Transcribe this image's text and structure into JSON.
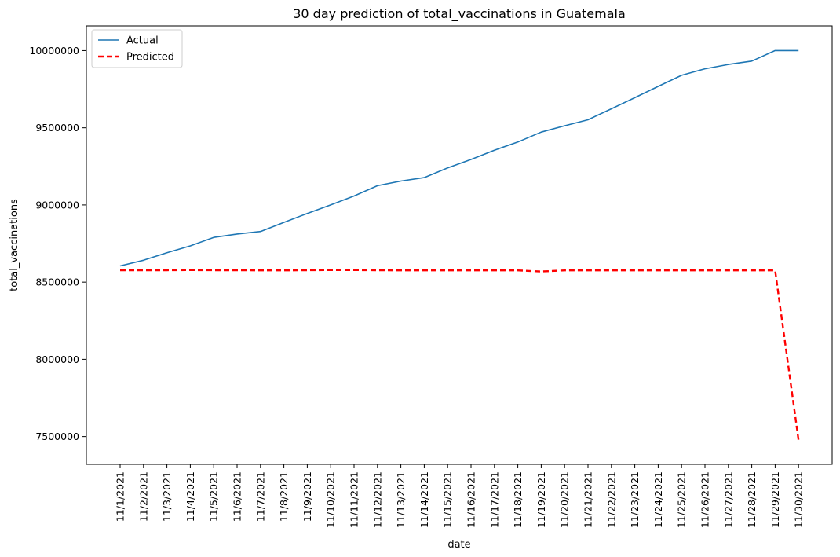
{
  "chart_data": {
    "type": "line",
    "title": "30 day prediction of total_vaccinations in Guatemala",
    "xlabel": "date",
    "ylabel": "total_vaccinations",
    "x": [
      "11/1/2021",
      "11/2/2021",
      "11/3/2021",
      "11/4/2021",
      "11/5/2021",
      "11/6/2021",
      "11/7/2021",
      "11/8/2021",
      "11/9/2021",
      "11/10/2021",
      "11/11/2021",
      "11/12/2021",
      "11/13/2021",
      "11/14/2021",
      "11/15/2021",
      "11/16/2021",
      "11/17/2021",
      "11/18/2021",
      "11/19/2021",
      "11/20/2021",
      "11/21/2021",
      "11/22/2021",
      "11/23/2021",
      "11/24/2021",
      "11/25/2021",
      "11/26/2021",
      "11/27/2021",
      "11/28/2021",
      "11/29/2021",
      "11/30/2021"
    ],
    "ylim": [
      7320000,
      10160000
    ],
    "yticks": [
      "7500000",
      "8000000",
      "8500000",
      "9000000",
      "9500000",
      "10000000"
    ],
    "grid": false,
    "legend": "top-left",
    "series": [
      {
        "name": "Actual",
        "color": "#1f77b4",
        "style": "solid",
        "values": [
          8605000,
          8642000,
          8690000,
          8735000,
          8790000,
          8812000,
          8828000,
          8887000,
          8945000,
          9000000,
          9058000,
          9125000,
          9155000,
          9177000,
          9240000,
          9295000,
          9355000,
          9408000,
          9472000,
          9513000,
          9552000,
          9623000,
          9695000,
          9768000,
          9840000,
          9882000,
          9910000,
          9932000,
          10000000,
          10000000
        ]
      },
      {
        "name": "Predicted",
        "color": "#ff0000",
        "style": "dashed",
        "values": [
          8577000,
          8577000,
          8577000,
          8578000,
          8577000,
          8577000,
          8576000,
          8576000,
          8577000,
          8578000,
          8578000,
          8577000,
          8576000,
          8576000,
          8576000,
          8576000,
          8576000,
          8576000,
          8569000,
          8576000,
          8576000,
          8576000,
          8576000,
          8576000,
          8576000,
          8576000,
          8576000,
          8576000,
          8576000,
          7477000
        ]
      }
    ]
  }
}
